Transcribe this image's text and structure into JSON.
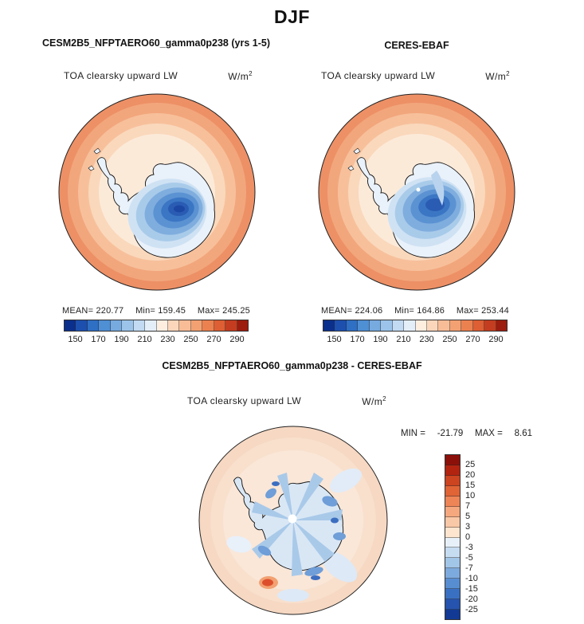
{
  "title": "DJF",
  "field_label": "TOA clearsky upward LW",
  "units": {
    "base": "W/m",
    "exp": "2"
  },
  "panels": [
    {
      "title": "CESM2B5_NFPTAERO60_gamma0p238 (yrs 1-5)",
      "stats": {
        "mean_label": "MEAN=",
        "mean": "220.77",
        "min_label": "Min=",
        "min": "159.45",
        "max_label": "Max=",
        "max": "245.25"
      }
    },
    {
      "title": "CERES-EBAF",
      "stats": {
        "mean_label": "MEAN=",
        "mean": "224.06",
        "min_label": "Min=",
        "min": "164.86",
        "max_label": "Max=",
        "max": "253.44"
      }
    }
  ],
  "diff": {
    "title": "CESM2B5_NFPTAERO60_gamma0p238 - CERES-EBAF",
    "min_label": "MIN =",
    "min": "-21.79",
    "max_label": "MAX =",
    "max": "8.61"
  },
  "colorbars": {
    "toa": {
      "orientation": "horizontal",
      "colors": [
        "#0b2f8c",
        "#1d4fae",
        "#2f6fc4",
        "#4f8fd4",
        "#77aadf",
        "#9cc4ea",
        "#c2daf2",
        "#e4eef8",
        "#fdeee0",
        "#fbd6bb",
        "#f8bd97",
        "#f3a173",
        "#ec8150",
        "#dd5f33",
        "#c43d20",
        "#9c1c0e"
      ],
      "ticks": [
        "150",
        "170",
        "190",
        "210",
        "230",
        "250",
        "270",
        "290"
      ]
    },
    "diff": {
      "orientation": "vertical",
      "colors": [
        "#8c100a",
        "#b32410",
        "#cc4420",
        "#e06436",
        "#ee8556",
        "#f5a87e",
        "#f9c8a6",
        "#fde5cf",
        "#e7f0f9",
        "#c6dcf1",
        "#a2c6e8",
        "#7daade",
        "#578ed2",
        "#3a70c2",
        "#2553ae",
        "#123a94"
      ],
      "ticks": [
        "25",
        "20",
        "15",
        "10",
        "7",
        "5",
        "3",
        "0",
        "-3",
        "-5",
        "-7",
        "-10",
        "-15",
        "-20",
        "-25"
      ]
    }
  },
  "chart_data": [
    {
      "type": "heatmap",
      "title": "CESM2B5_NFPTAERO60_gamma0p238 (yrs 1-5)",
      "season": "DJF",
      "variable": "TOA clearsky upward LW",
      "units": "W/m^2",
      "projection": "south polar stereographic (Antarctica)",
      "stats": {
        "mean": 220.77,
        "min": 159.45,
        "max": 245.25
      },
      "contour_levels": [
        150,
        160,
        170,
        180,
        190,
        200,
        210,
        220,
        230,
        240,
        250,
        260,
        270,
        280,
        290
      ],
      "tick_labels": [
        150,
        170,
        190,
        210,
        230,
        250,
        270,
        290
      ],
      "palette": "blue (low) to red (high)",
      "legend_position": "bottom"
    },
    {
      "type": "heatmap",
      "title": "CERES-EBAF",
      "season": "DJF",
      "variable": "TOA clearsky upward LW",
      "units": "W/m^2",
      "projection": "south polar stereographic (Antarctica)",
      "stats": {
        "mean": 224.06,
        "min": 164.86,
        "max": 253.44
      },
      "contour_levels": [
        150,
        160,
        170,
        180,
        190,
        200,
        210,
        220,
        230,
        240,
        250,
        260,
        270,
        280,
        290
      ],
      "tick_labels": [
        150,
        170,
        190,
        210,
        230,
        250,
        270,
        290
      ],
      "palette": "blue (low) to red (high)",
      "legend_position": "bottom"
    },
    {
      "type": "heatmap",
      "title": "CESM2B5_NFPTAERO60_gamma0p238 - CERES-EBAF",
      "season": "DJF",
      "variable": "TOA clearsky upward LW (difference)",
      "units": "W/m^2",
      "projection": "south polar stereographic (Antarctica)",
      "stats": {
        "min": -21.79,
        "max": 8.61
      },
      "contour_levels": [
        -25,
        -20,
        -15,
        -10,
        -7,
        -5,
        -3,
        0,
        3,
        5,
        7,
        10,
        15,
        20,
        25
      ],
      "palette": "diverging red (positive) / blue (negative)",
      "legend_position": "right"
    }
  ]
}
